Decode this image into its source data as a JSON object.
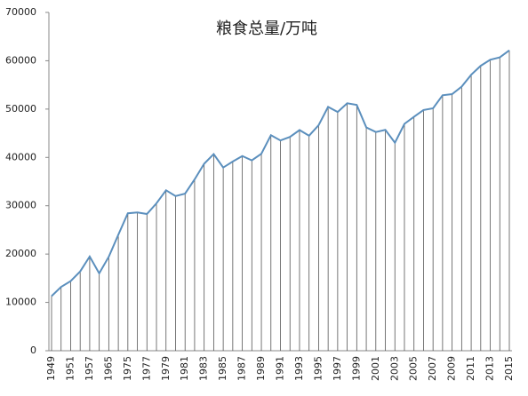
{
  "chart_data": {
    "type": "line",
    "title": "粮食总量/万吨",
    "categories": [
      "1949",
      null,
      "1951",
      null,
      "1957",
      null,
      "1965",
      null,
      "1975",
      null,
      "1977",
      null,
      "1979",
      null,
      "1981",
      null,
      "1983",
      null,
      "1985",
      null,
      "1987",
      null,
      "1989",
      null,
      "1991",
      null,
      "1993",
      null,
      "1995",
      null,
      "1997",
      null,
      "1999",
      null,
      "2001",
      null,
      "2003",
      null,
      "2005",
      null,
      "2007",
      null,
      "2009",
      null,
      "2011",
      null,
      "2013",
      null,
      "2015"
    ],
    "values": [
      11300,
      13200,
      14400,
      16400,
      19500,
      16000,
      19450,
      24000,
      28450,
      28600,
      28300,
      30500,
      33200,
      32000,
      32500,
      35450,
      38700,
      40700,
      37900,
      39150,
      40300,
      39400,
      40750,
      44600,
      43500,
      44250,
      45650,
      44500,
      46650,
      50450,
      49400,
      51200,
      50850,
      46200,
      45250,
      45700,
      43050,
      46950,
      48400,
      49800,
      50150,
      52850,
      53100,
      54650,
      57100,
      58950,
      60200,
      60700,
      62150
    ],
    "color": "#5b8fbd",
    "drop_line_color": "#555555",
    "ylim": [
      0,
      70000
    ],
    "yticks": [
      0,
      10000,
      20000,
      30000,
      40000,
      50000,
      60000,
      70000
    ]
  }
}
